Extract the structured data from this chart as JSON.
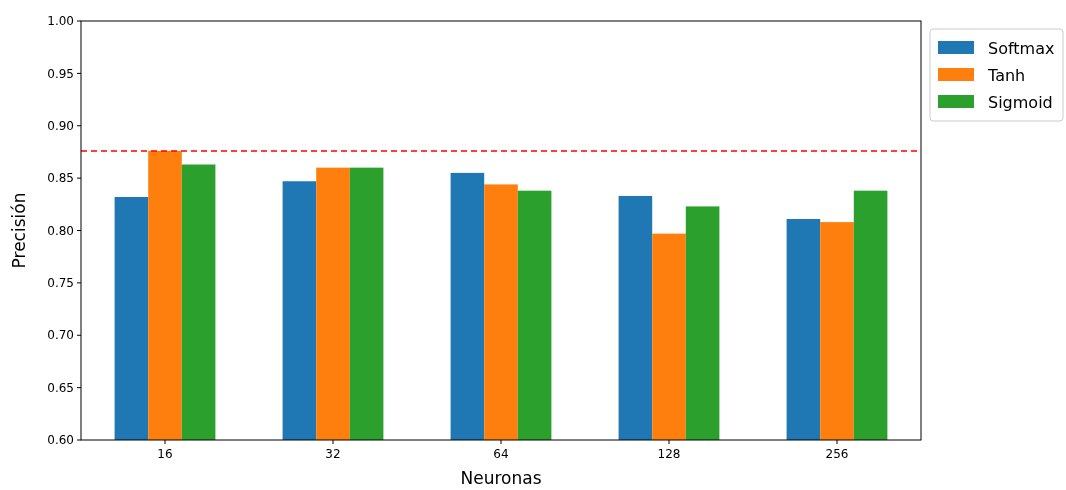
{
  "chart_data": {
    "type": "bar",
    "xlabel": "Neuronas",
    "ylabel": "Precisión",
    "categories": [
      "16",
      "32",
      "64",
      "128",
      "256"
    ],
    "series": [
      {
        "name": "Softmax",
        "color": "#1f77b4",
        "values": [
          0.832,
          0.847,
          0.855,
          0.833,
          0.811
        ]
      },
      {
        "name": "Tanh",
        "color": "#ff7f0e",
        "values": [
          0.876,
          0.86,
          0.844,
          0.797,
          0.808
        ]
      },
      {
        "name": "Sigmoid",
        "color": "#2ca02c",
        "values": [
          0.863,
          0.86,
          0.838,
          0.823,
          0.838
        ]
      }
    ],
    "ylim": [
      0.6,
      1.0
    ],
    "yticks": [
      {
        "value": 0.6,
        "label": "0.60"
      },
      0.65,
      {
        "value": 0.7,
        "label": "0.70"
      },
      0.75,
      {
        "value": 0.8,
        "label": "0.80"
      },
      0.85,
      {
        "value": 0.9,
        "label": "0.90"
      },
      0.95,
      {
        "value": 1.0,
        "label": "1.00"
      }
    ],
    "ref_lines": [
      {
        "axis": "y",
        "value": 0.876,
        "color": "#ff0000",
        "line_style": "dashed"
      }
    ],
    "legend": "top right",
    "grid": false
  }
}
